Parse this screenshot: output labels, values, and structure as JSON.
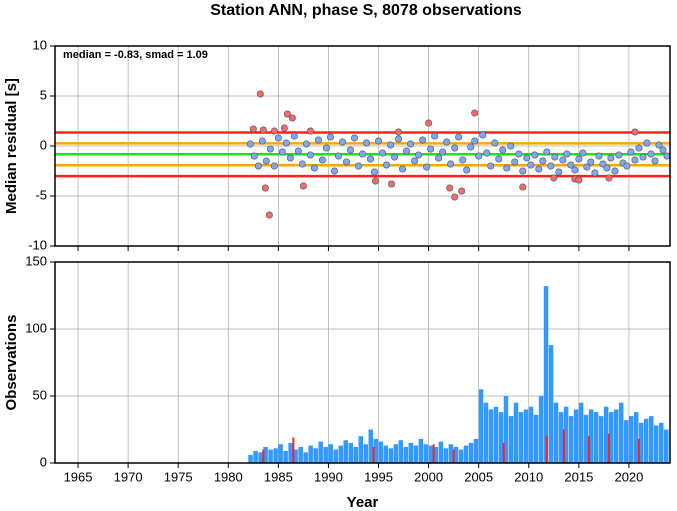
{
  "chart_data": [
    {
      "type": "scatter",
      "title": "Station ANN, phase S, 8078 observations",
      "y_label": "Median residual [s]",
      "annotation": "median = -0.83, smad = 1.09",
      "xlim": [
        1962.7,
        2024.1
      ],
      "xticks": [
        1965,
        1970,
        1975,
        1980,
        1985,
        1990,
        1995,
        2000,
        2005,
        2010,
        2015,
        2020
      ],
      "show_xtick_labels": false,
      "ylim": [
        -10,
        10
      ],
      "yticks": [
        -10,
        -5,
        0,
        5,
        10
      ],
      "grid": true,
      "hlines": [
        {
          "value": 1.35,
          "color": "#ff2020"
        },
        {
          "value": 0.26,
          "color": "#ffa500"
        },
        {
          "value": -0.83,
          "color": "#22dd22"
        },
        {
          "value": -1.92,
          "color": "#ffa500"
        },
        {
          "value": -3.01,
          "color": "#ff2020"
        }
      ],
      "series": [
        {
          "color": "#7ea7f5",
          "x": [
            1982.2,
            1982.6,
            1983.0,
            1983.4,
            1983.8,
            1984.2,
            1984.6,
            1985.0,
            1985.4,
            1985.8,
            1986.2,
            1986.6,
            1987.0,
            1987.4,
            1987.8,
            1988.2,
            1988.6,
            1989.0,
            1989.4,
            1989.8,
            1990.2,
            1990.6,
            1991.0,
            1991.4,
            1991.8,
            1992.2,
            1992.6,
            1993.0,
            1993.4,
            1993.8,
            1994.2,
            1994.6,
            1995.0,
            1995.4,
            1995.8,
            1996.2,
            1996.6,
            1997.0,
            1997.4,
            1997.8,
            1998.2,
            1998.6,
            1999.0,
            1999.4,
            1999.8,
            2000.2,
            2000.6,
            2001.0,
            2001.4,
            2001.8,
            2002.2,
            2002.6,
            2003.0,
            2003.4,
            2003.8,
            2004.2,
            2004.6,
            2005.0,
            2005.4,
            2005.8,
            2006.2,
            2006.6,
            2007.0,
            2007.4,
            2007.8,
            2008.2,
            2008.6,
            2009.0,
            2009.4,
            2009.8,
            2010.2,
            2010.6,
            2011.0,
            2011.4,
            2011.8,
            2012.2,
            2012.6,
            2013.0,
            2013.4,
            2013.8,
            2014.2,
            2014.6,
            2015.0,
            2015.4,
            2015.8,
            2016.2,
            2016.6,
            2017.0,
            2017.4,
            2017.8,
            2018.2,
            2018.6,
            2019.0,
            2019.4,
            2019.8,
            2020.2,
            2020.6,
            2021.0,
            2021.4,
            2021.8,
            2022.2,
            2022.6,
            2023.0,
            2023.4,
            2023.8
          ],
          "values": [
            0.2,
            -1.0,
            -2.0,
            0.5,
            -1.5,
            -0.3,
            -2.0,
            0.8,
            -0.6,
            0.3,
            -1.2,
            1.0,
            -0.5,
            -1.8,
            0.2,
            -0.9,
            -2.2,
            0.6,
            -1.4,
            -0.2,
            0.9,
            -2.5,
            -1.0,
            0.4,
            -1.6,
            -0.4,
            0.8,
            -2.0,
            -0.8,
            0.3,
            -1.3,
            -2.6,
            0.5,
            -0.7,
            -1.9,
            0.1,
            -1.1,
            0.7,
            -2.3,
            -0.5,
            0.2,
            -1.5,
            -0.9,
            0.6,
            -2.1,
            -0.3,
            1.0,
            -1.2,
            -0.6,
            0.4,
            -1.8,
            -0.2,
            0.9,
            -1.4,
            -2.4,
            -0.1,
            0.5,
            -1.0,
            1.1,
            -0.7,
            -2.0,
            0.3,
            -1.3,
            -0.4,
            -2.2,
            0.0,
            -1.6,
            -0.8,
            -2.5,
            -1.2,
            -1.9,
            -0.9,
            -2.3,
            -1.5,
            -0.6,
            -2.0,
            -1.1,
            -2.6,
            -1.4,
            -0.8,
            -1.9,
            -2.4,
            -1.3,
            -0.7,
            -2.1,
            -1.6,
            -2.7,
            -1.0,
            -1.8,
            -2.2,
            -1.2,
            -2.5,
            -0.9,
            -1.7,
            -2.0,
            -0.6,
            -1.4,
            -0.2,
            -1.1,
            0.3,
            -0.8,
            -1.5,
            0.1,
            -0.4,
            -1.0
          ]
        },
        {
          "color": "#f36b6b",
          "x": [
            1982.5,
            1983.2,
            1983.5,
            1983.7,
            1984.1,
            1984.6,
            1985.6,
            1985.9,
            1986.4,
            1987.5,
            1988.2,
            1994.7,
            1996.3,
            1997.0,
            2000.0,
            2002.1,
            2002.6,
            2003.3,
            2004.6,
            2009.4,
            2012.5,
            2014.6,
            2015.0,
            2018.0,
            2020.6
          ],
          "values": [
            1.7,
            5.2,
            1.6,
            -4.2,
            -6.9,
            1.5,
            1.8,
            3.2,
            2.8,
            -4.0,
            1.5,
            -3.5,
            -3.8,
            1.4,
            2.3,
            -4.2,
            -5.1,
            -4.5,
            3.3,
            -4.1,
            -3.2,
            -3.3,
            -3.4,
            -3.2,
            1.4
          ]
        }
      ]
    },
    {
      "type": "histogram",
      "y_label": "Observations",
      "x_label": "Year",
      "xlim": [
        1962.7,
        2024.1
      ],
      "xticks": [
        1965,
        1970,
        1975,
        1980,
        1985,
        1990,
        1995,
        2000,
        2005,
        2010,
        2015,
        2020
      ],
      "show_xtick_labels": true,
      "ylim": [
        0,
        150
      ],
      "yticks": [
        0,
        50,
        100,
        150
      ],
      "grid": true,
      "series": [
        {
          "color": "#3399ff",
          "bins": [
            1982,
            1982.5,
            1983,
            1983.5,
            1984,
            1984.5,
            1985,
            1985.5,
            1986,
            1986.5,
            1987,
            1987.5,
            1988,
            1988.5,
            1989,
            1989.5,
            1990,
            1990.5,
            1991,
            1991.5,
            1992,
            1992.5,
            1993,
            1993.5,
            1994,
            1994.5,
            1995,
            1995.5,
            1996,
            1996.5,
            1997,
            1997.5,
            1998,
            1998.5,
            1999,
            1999.5,
            2000,
            2000.5,
            2001,
            2001.5,
            2002,
            2002.5,
            2003,
            2003.5,
            2004,
            2004.5,
            2005,
            2005.5,
            2006,
            2006.5,
            2007,
            2007.5,
            2008,
            2008.5,
            2009,
            2009.5,
            2010,
            2010.5,
            2011,
            2011.5,
            2012,
            2012.5,
            2013,
            2013.5,
            2014,
            2014.5,
            2015,
            2015.5,
            2016,
            2016.5,
            2017,
            2017.5,
            2018,
            2018.5,
            2019,
            2019.5,
            2020,
            2020.5,
            2021,
            2021.5,
            2022,
            2022.5,
            2023,
            2023.5,
            2024
          ],
          "values": [
            6,
            9,
            8,
            12,
            10,
            11,
            14,
            9,
            15,
            10,
            12,
            8,
            13,
            11,
            16,
            12,
            14,
            10,
            13,
            17,
            15,
            12,
            20,
            14,
            25,
            18,
            16,
            13,
            11,
            14,
            17,
            12,
            15,
            13,
            18,
            14,
            13,
            12,
            16,
            11,
            14,
            12,
            10,
            13,
            15,
            18,
            55,
            45,
            40,
            42,
            38,
            50,
            35,
            45,
            38,
            40,
            42,
            36,
            50,
            132,
            88,
            45,
            38,
            42,
            35,
            40,
            45,
            36,
            40,
            38,
            35,
            42,
            38,
            40,
            45,
            32,
            35,
            38,
            30,
            33,
            35,
            28,
            30,
            25
          ]
        },
        {
          "color": "#ff2020",
          "x": [
            1983.5,
            1986.5,
            1994.5,
            2000.5,
            2002.5,
            2007.5,
            2011.8,
            2013.5,
            2016.0,
            2018.0,
            2021.0
          ],
          "values": [
            10,
            19,
            12,
            14,
            10,
            15,
            20,
            25,
            20,
            22,
            18
          ]
        }
      ]
    }
  ]
}
